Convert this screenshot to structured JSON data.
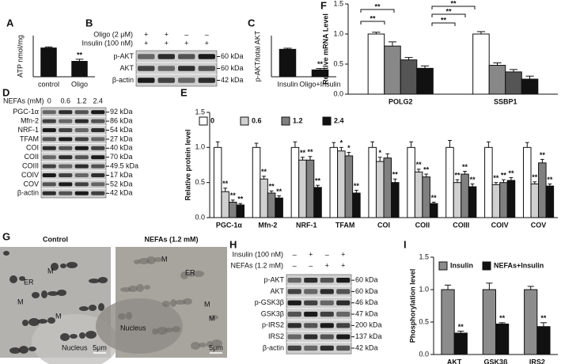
{
  "panel_labels": [
    "A",
    "B",
    "C",
    "D",
    "E",
    "F",
    "G",
    "H",
    "I"
  ],
  "chart_data": [
    {
      "type": "bar",
      "y_label": "ATP nmol/mg",
      "categories": [
        "control",
        "Oligo"
      ],
      "values": [
        5.6,
        3.0
      ],
      "errors": [
        0.2,
        0.4
      ],
      "significance": [
        null,
        "**"
      ],
      "color": "#111111",
      "ylim": [
        0,
        8
      ]
    },
    {
      "type": "bar",
      "y_label": "p-AKT/total AKT",
      "categories": [
        "Insulin",
        "Oligo+Insulin"
      ],
      "values": [
        1.0,
        0.25
      ],
      "errors": [
        0.04,
        0.05
      ],
      "significance": [
        null,
        "**"
      ],
      "color": "#111111",
      "ylim": [
        0,
        1.5
      ]
    },
    {
      "type": "bar",
      "y_label": "Relative protein level",
      "categories": [
        "PGC-1α",
        "Mfn-2",
        "NRF-1",
        "TFAM",
        "COI",
        "COII",
        "COIII",
        "COIV",
        "COV"
      ],
      "series": [
        {
          "name": "0",
          "color": "#ffffff",
          "values": [
            1.0,
            1.0,
            1.0,
            1.0,
            1.0,
            1.0,
            1.0,
            1.0,
            1.0
          ],
          "errors": [
            0.08,
            0.06,
            0.08,
            0.07,
            0.08,
            0.08,
            0.1,
            0.08,
            0.07
          ]
        },
        {
          "name": "0.6",
          "color": "#d0d0d0",
          "values": [
            0.37,
            0.55,
            0.82,
            0.95,
            0.8,
            0.65,
            0.5,
            0.47,
            0.48
          ],
          "errors": [
            0.05,
            0.04,
            0.04,
            0.05,
            0.06,
            0.04,
            0.04,
            0.03,
            0.03
          ],
          "significance": [
            "**",
            "**",
            "**",
            "*",
            "*",
            "**",
            "**",
            "**",
            "**"
          ]
        },
        {
          "name": "1.2",
          "color": "#808080",
          "values": [
            0.22,
            0.35,
            0.82,
            0.88,
            0.85,
            0.58,
            0.62,
            0.5,
            0.78
          ],
          "errors": [
            0.03,
            0.03,
            0.05,
            0.05,
            0.06,
            0.04,
            0.04,
            0.04,
            0.05
          ],
          "significance": [
            "**",
            "**",
            "**",
            "*",
            null,
            "**",
            "**",
            "**",
            "**"
          ]
        },
        {
          "name": "2.4",
          "color": "#111111",
          "values": [
            0.18,
            0.28,
            0.43,
            0.35,
            0.5,
            0.2,
            0.44,
            0.53,
            0.45
          ],
          "errors": [
            0.02,
            0.03,
            0.03,
            0.04,
            0.05,
            0.02,
            0.04,
            0.04,
            0.03
          ],
          "significance": [
            "**",
            "**",
            "**",
            "**",
            "**",
            "**",
            "**",
            "**",
            "**"
          ]
        }
      ],
      "ylim": [
        0,
        1.5
      ],
      "yticks": [
        {
          "value": 0,
          "label": "0.0"
        },
        {
          "value": 0.5,
          "label": "0.5"
        },
        {
          "value": 1,
          "label": "1.0"
        },
        {
          "value": 1.5,
          "label": "1.5"
        }
      ]
    },
    {
      "type": "bar",
      "y_label": "Relative mRNA Level",
      "categories": [
        "POLG2",
        "SSBP1"
      ],
      "series": [
        {
          "color": "#ffffff",
          "values": [
            1.0,
            1.0
          ],
          "errors": [
            0.03,
            0.04
          ]
        },
        {
          "color": "#888888",
          "values": [
            0.8,
            0.48
          ],
          "errors": [
            0.07,
            0.04
          ]
        },
        {
          "color": "#555555",
          "values": [
            0.57,
            0.37
          ],
          "errors": [
            0.04,
            0.04
          ]
        },
        {
          "color": "#111111",
          "values": [
            0.43,
            0.25
          ],
          "errors": [
            0.04,
            0.05
          ]
        }
      ],
      "brackets": [
        "**",
        "**",
        "**",
        "**",
        "**"
      ],
      "ylim": [
        0,
        1.5
      ],
      "yticks": [
        {
          "value": 0,
          "label": "0.0"
        },
        {
          "value": 0.5,
          "label": "0.5"
        },
        {
          "value": 1,
          "label": "1.0"
        },
        {
          "value": 1.5,
          "label": "1.5"
        }
      ]
    },
    {
      "type": "bar",
      "y_label": "Phosphorylation level",
      "categories": [
        "AKT",
        "GSK3β",
        "IRS2"
      ],
      "series": [
        {
          "name": "Insulin",
          "color": "#8c8c8c",
          "values": [
            1.0,
            1.0,
            1.0
          ],
          "errors": [
            0.07,
            0.1,
            0.05
          ]
        },
        {
          "name": "NEFAs+Insulin",
          "color": "#111111",
          "values": [
            0.33,
            0.47,
            0.43
          ],
          "errors": [
            0.03,
            0.02,
            0.06
          ],
          "significance": [
            "**",
            "**",
            "**"
          ]
        }
      ],
      "ylim": [
        0,
        1.5
      ],
      "yticks": [
        {
          "value": 0,
          "label": "0.0"
        },
        {
          "value": 0.5,
          "label": "0.5"
        },
        {
          "value": 1,
          "label": "1.0"
        },
        {
          "value": 1.5,
          "label": "1.5"
        }
      ]
    }
  ],
  "blots": [
    {
      "conditions": [
        {
          "name": "Oligo (2 μM)",
          "signs": [
            "+",
            "+",
            "–",
            "–"
          ]
        },
        {
          "name": "Insulin (100 nM)",
          "signs": [
            "+",
            "+",
            "+",
            "+"
          ]
        }
      ],
      "rows": [
        {
          "name": "p-AKT",
          "kda": "60 kDa"
        },
        {
          "name": "AKT",
          "kda": "60 kDa"
        },
        {
          "name": "β-actin",
          "kda": "42 kDa"
        }
      ]
    },
    {
      "header": "NEFAs (mM)",
      "lanes": [
        "0",
        "0.6",
        "1.2",
        "2.4"
      ],
      "rows": [
        {
          "name": "PGC-1α",
          "kda": "92 kDa"
        },
        {
          "name": "Mfn-2",
          "kda": "86 kDa"
        },
        {
          "name": "NRF-1",
          "kda": "54 kDa"
        },
        {
          "name": "TFAM",
          "kda": "27 kDa"
        },
        {
          "name": "COI",
          "kda": "40 kDa"
        },
        {
          "name": "COII",
          "kda": "70 kDa"
        },
        {
          "name": "COIII",
          "kda": "49.5 kDa"
        },
        {
          "name": "COIV",
          "kda": "17 kDa"
        },
        {
          "name": "COV",
          "kda": "52 kDa"
        },
        {
          "name": "β-actin",
          "kda": "42 kDa"
        }
      ]
    },
    {
      "conditions": [
        {
          "name": "Insulin (100 nM)",
          "signs": [
            "–",
            "+",
            "–",
            "+"
          ]
        },
        {
          "name": "NEFAs (1.2 mM)",
          "signs": [
            "–",
            "–",
            "+",
            "+"
          ]
        }
      ],
      "rows": [
        {
          "name": "p-AKT",
          "kda": "60 kDa"
        },
        {
          "name": "AKT",
          "kda": "60 kDa"
        },
        {
          "name": "p-GSK3β",
          "kda": "46 kDa"
        },
        {
          "name": "GSK3β",
          "kda": "47 kDa"
        },
        {
          "name": "p-IRS2",
          "kda": "200 kDa"
        },
        {
          "name": "IRS2",
          "kda": "137 kDa"
        },
        {
          "name": "β-actin",
          "kda": "42 kDa"
        }
      ]
    }
  ],
  "micrographs": [
    {
      "title": "Control",
      "labels": [
        "ER",
        "M",
        "M",
        "M",
        "Nucleus"
      ],
      "scale": "5μm"
    },
    {
      "title": "NEFAs (1.2 mM)",
      "labels": [
        "M",
        "ER",
        "M",
        "M",
        "Nucleus"
      ],
      "scale": "5μm"
    }
  ]
}
